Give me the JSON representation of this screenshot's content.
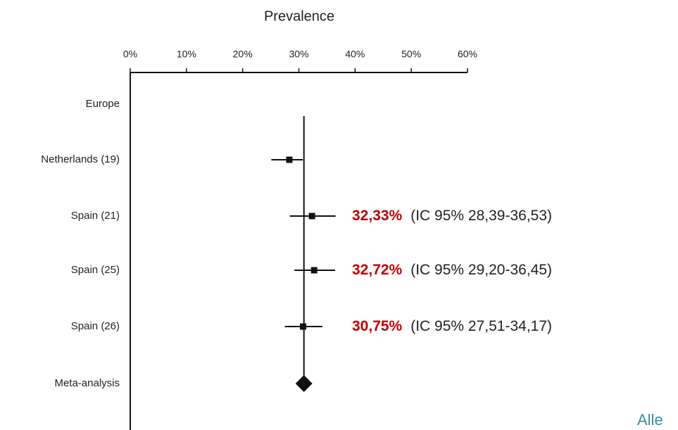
{
  "chart_data": {
    "type": "forest",
    "title": "Prevalence",
    "xlim": [
      0,
      60
    ],
    "xticks": [
      {
        "value": 0,
        "label": "0%"
      },
      {
        "value": 10,
        "label": "10%"
      },
      {
        "value": 20,
        "label": "20%"
      },
      {
        "value": 30,
        "label": "30%"
      },
      {
        "value": 40,
        "label": "40%"
      },
      {
        "value": 50,
        "label": "50%"
      },
      {
        "value": 60,
        "label": "60%"
      }
    ],
    "categories": [
      "Europe",
      "Netherlands (19)",
      "Spain (21)",
      "Spain (25)",
      "Spain (26)",
      "Meta-analysis"
    ],
    "values": [
      null,
      28.3,
      32.33,
      32.72,
      30.75,
      30.9
    ],
    "lower": [
      null,
      25.1,
      28.39,
      29.2,
      27.51,
      29.4
    ],
    "upper": [
      null,
      30.7,
      36.53,
      36.45,
      34.17,
      32.4
    ],
    "value_labels": [
      null,
      null,
      "32,33%",
      "32,72%",
      "30,75%",
      null
    ],
    "ci_labels": [
      null,
      null,
      "(IC 95%  28,39-36,53)",
      "(IC 95% 29,20-36,45)",
      "(IC 95% 27,51-34,17)",
      null
    ],
    "color": "#111111",
    "label_color": "#c00000",
    "footer_text": "Alle"
  }
}
